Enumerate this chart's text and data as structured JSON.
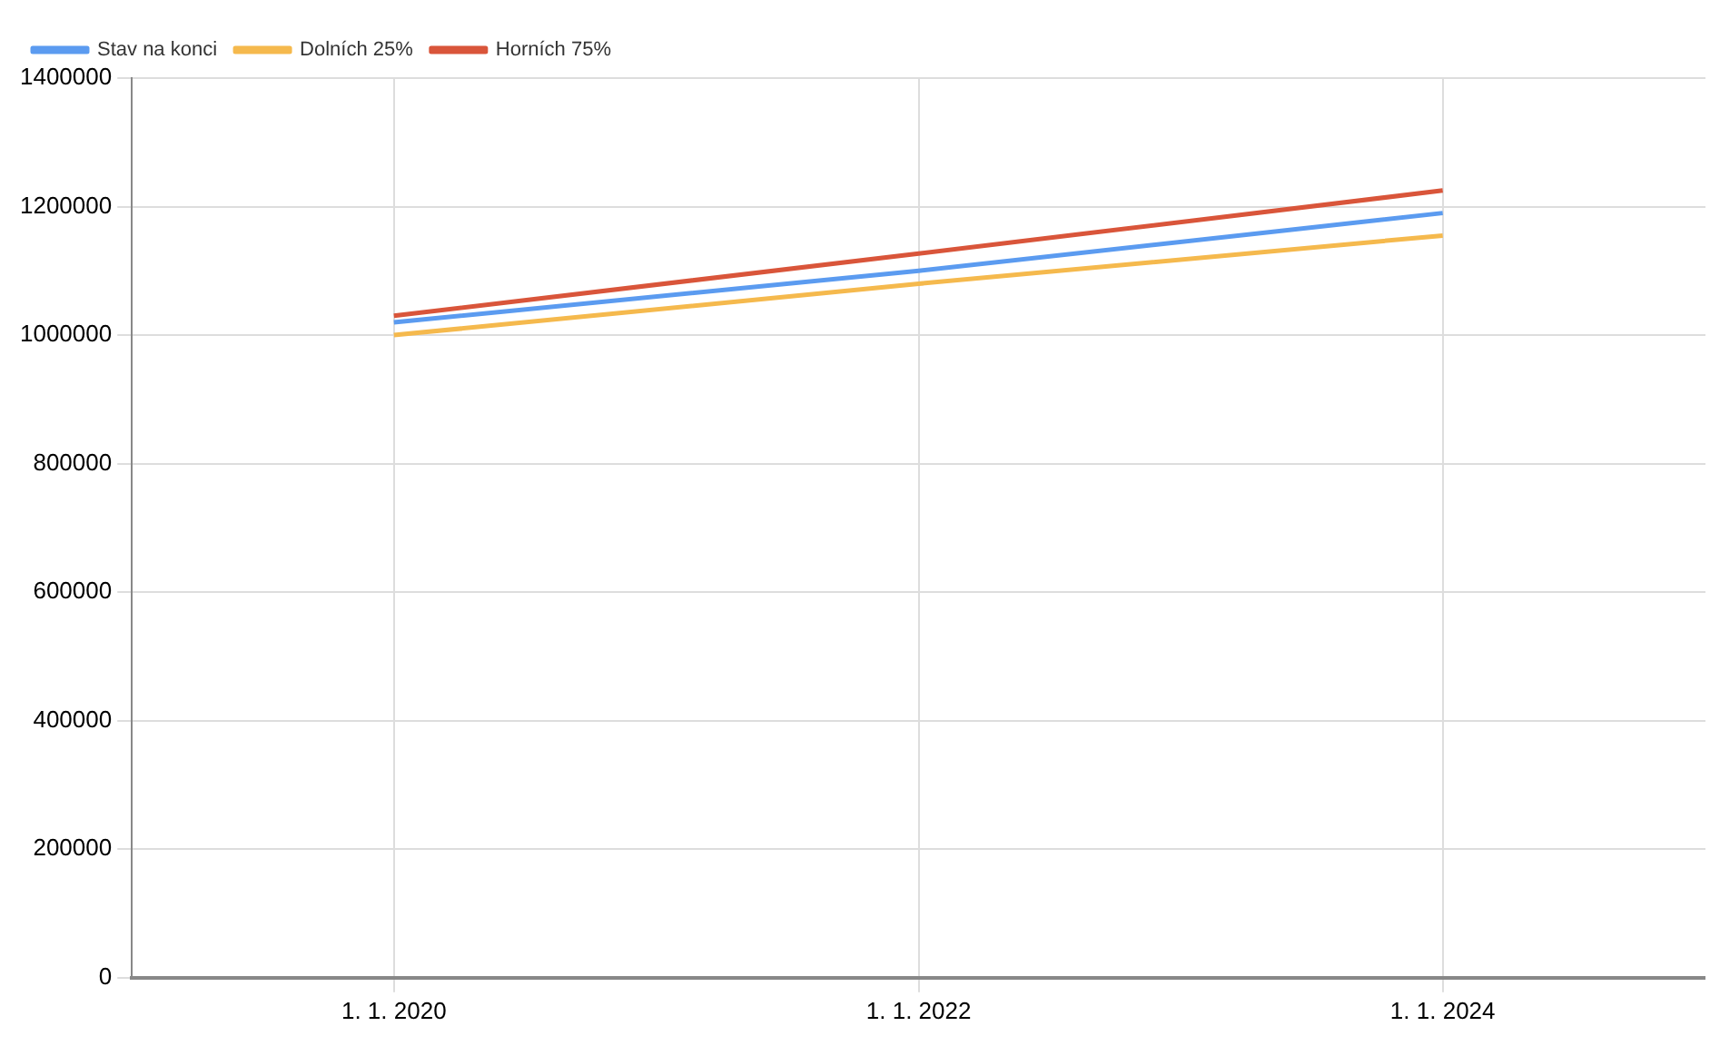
{
  "chart_data": {
    "type": "line",
    "x": [
      "2020-01-01",
      "2022-01-01",
      "2024-01-01"
    ],
    "series": [
      {
        "name": "Stav na konci",
        "color": "#5b9bf0",
        "values": [
          1020000,
          1100000,
          1190000
        ]
      },
      {
        "name": "Dolních 25%",
        "color": "#f5b94d",
        "values": [
          1000000,
          1080000,
          1155000
        ]
      },
      {
        "name": "Horních 75%",
        "color": "#d9553a",
        "values": [
          1030000,
          1127000,
          1225000
        ]
      }
    ],
    "xlim": [
      "2019-01-01",
      "2025-01-01"
    ],
    "xticks": [
      {
        "value": "2020-01-01",
        "label": "1. 1. 2020"
      },
      {
        "value": "2022-01-01",
        "label": "1. 1. 2022"
      },
      {
        "value": "2024-01-01",
        "label": "1. 1. 2024"
      }
    ],
    "ylim": [
      0,
      1400000
    ],
    "yticks": [
      0,
      200000,
      400000,
      600000,
      800000,
      1000000,
      1200000,
      1400000
    ],
    "grid": true,
    "legend": "top left"
  }
}
